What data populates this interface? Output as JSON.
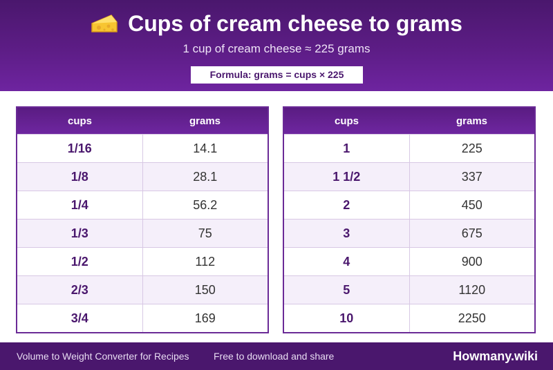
{
  "header": {
    "icon": "cheese-icon",
    "title": "Cups of cream cheese to grams",
    "subtitle": "1 cup of cream cheese ≈ 225 grams",
    "formula": "Formula: grams = cups × 225"
  },
  "tables": [
    {
      "headers": [
        "cups",
        "grams"
      ],
      "rows": [
        [
          "1/16",
          "14.1"
        ],
        [
          "1/8",
          "28.1"
        ],
        [
          "1/4",
          "56.2"
        ],
        [
          "1/3",
          "75"
        ],
        [
          "1/2",
          "112"
        ],
        [
          "2/3",
          "150"
        ],
        [
          "3/4",
          "169"
        ]
      ]
    },
    {
      "headers": [
        "cups",
        "grams"
      ],
      "rows": [
        [
          "1",
          "225"
        ],
        [
          "1 1/2",
          "337"
        ],
        [
          "2",
          "450"
        ],
        [
          "3",
          "675"
        ],
        [
          "4",
          "900"
        ],
        [
          "5",
          "1120"
        ],
        [
          "10",
          "2250"
        ]
      ]
    }
  ],
  "footer": {
    "left": "Volume to Weight Converter for Recipes",
    "middle": "Free to download and share",
    "brand": "Howmany.wiki"
  },
  "colors": {
    "primary": "#5d1d86",
    "dark": "#4a176d",
    "row_alt": "#f5effa"
  }
}
